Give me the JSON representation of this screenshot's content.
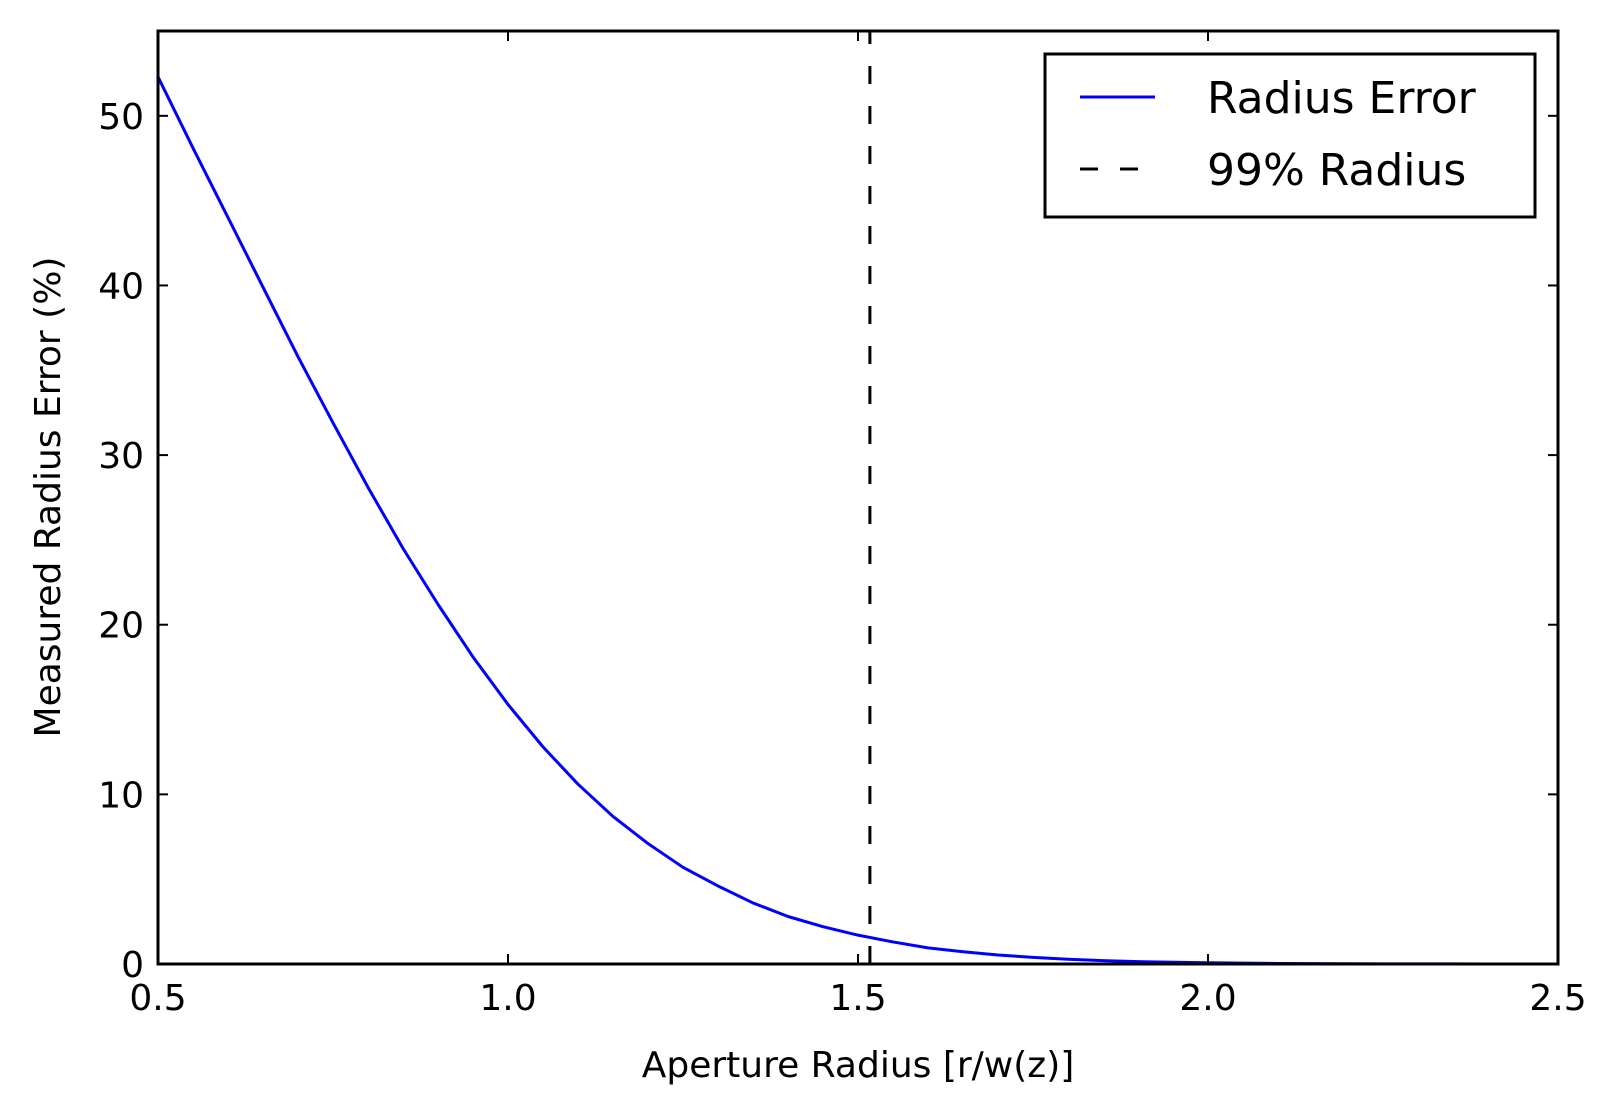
{
  "chart_data": {
    "type": "line",
    "title": "",
    "xlabel": "Aperture Radius [r/w(z)]",
    "ylabel": "Measured Radius Error (%)",
    "xlim": [
      0.5,
      2.5
    ],
    "ylim": [
      0,
      55
    ],
    "x_ticks": [
      0.5,
      1.0,
      1.5,
      2.0,
      2.5
    ],
    "x_tick_labels": [
      "0.5",
      "1.0",
      "1.5",
      "2.0",
      "2.5"
    ],
    "y_ticks": [
      0,
      10,
      20,
      30,
      40,
      50
    ],
    "y_tick_labels": [
      "0",
      "10",
      "20",
      "30",
      "40",
      "50"
    ],
    "grid": false,
    "legend_position": "top-right",
    "series": [
      {
        "name": "Radius Error",
        "style": "solid",
        "color": "#0000ff",
        "x": [
          0.5,
          0.55,
          0.6,
          0.65,
          0.7,
          0.75,
          0.8,
          0.85,
          0.9,
          0.95,
          1.0,
          1.05,
          1.1,
          1.15,
          1.2,
          1.25,
          1.3,
          1.35,
          1.4,
          1.45,
          1.5,
          1.55,
          1.6,
          1.65,
          1.7,
          1.75,
          1.8,
          1.85,
          1.9,
          1.95,
          2.0,
          2.05,
          2.1,
          2.15,
          2.2,
          2.25,
          2.3,
          2.35,
          2.4,
          2.45,
          2.5
        ],
        "y": [
          52.3,
          48.1,
          44.0,
          39.9,
          35.8,
          31.9,
          28.1,
          24.5,
          21.2,
          18.1,
          15.3,
          12.8,
          10.6,
          8.7,
          7.1,
          5.7,
          4.6,
          3.6,
          2.8,
          2.2,
          1.7,
          1.3,
          0.95,
          0.72,
          0.53,
          0.39,
          0.28,
          0.2,
          0.14,
          0.1,
          0.07,
          0.05,
          0.03,
          0.02,
          0.015,
          0.01,
          0.007,
          0.005,
          0.003,
          0.002,
          0.001
        ]
      },
      {
        "name": "99% Radius",
        "style": "dashed",
        "color": "#000000",
        "x": [
          1.517,
          1.517
        ],
        "y": [
          0,
          55
        ]
      }
    ]
  }
}
